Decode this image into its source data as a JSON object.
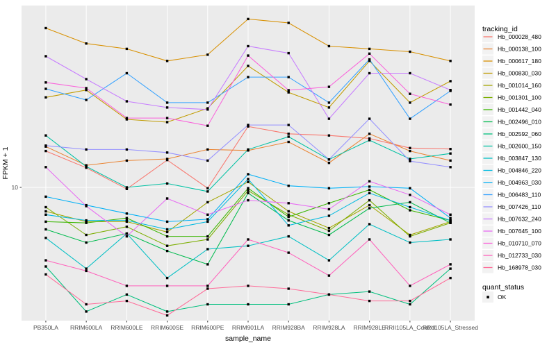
{
  "figure": {
    "y_axis": {
      "title": "FPKM + 1",
      "tick_label": "10",
      "scale": "log10"
    },
    "x_axis": {
      "title": "sample_name"
    },
    "legend": {
      "tracking_title": "tracking_id",
      "quant_title": "quant_status",
      "quant_ok_label": "OK"
    },
    "colors": {
      "panel_background": "#EBEBEB",
      "gridline": "#FFFFFF",
      "legend_key_background": "#F2F2F2",
      "tick_text": "#4D4D4D",
      "point": "#000000"
    }
  },
  "chart_data": {
    "type": "line",
    "title": "",
    "xlabel": "sample_name",
    "ylabel": "FPKM + 1",
    "y_scale": "log10",
    "y_ticks": [
      10
    ],
    "point_shape": "filled-square",
    "quant_status": "OK",
    "x": [
      "PB350LA",
      "RRIM600LA",
      "RRIM600LE",
      "RRIM600SE",
      "RRIM600PE",
      "RRIM901LA",
      "RRIM928BA",
      "RRIM928LA",
      "RRIM928LE",
      "RRII105LA_Control",
      "RRII105LA_Stressed"
    ],
    "series": [
      {
        "name": "Hb_000028_480",
        "color": "#F8766D",
        "values": [
          15.8,
          12.8,
          9.8,
          14.1,
          9.9,
          21.5,
          19.6,
          19.2,
          18.5,
          16.4,
          16.2
        ]
      },
      {
        "name": "Hb_000138_100",
        "color": "#EA8331",
        "values": [
          16.7,
          13.2,
          14.0,
          14.3,
          16.1,
          15.9,
          17.7,
          13.6,
          19.6,
          15.8,
          14.0
        ]
      },
      {
        "name": "Hb_000617_180",
        "color": "#D89000",
        "values": [
          74,
          61,
          57,
          49,
          53,
          83,
          79,
          59,
          57,
          55,
          49
        ]
      },
      {
        "name": "Hb_000830_030",
        "color": "#C09B00",
        "values": [
          31,
          34,
          23.5,
          22.7,
          27,
          46,
          33,
          27.3,
          49,
          29,
          38
        ]
      },
      {
        "name": "Hb_001014_160",
        "color": "#A3A500",
        "values": [
          7.4,
          6.5,
          6.5,
          5.7,
          8.3,
          10.7,
          7.4,
          6.0,
          8.0,
          5.5,
          6.5
        ]
      },
      {
        "name": "Hb_001301_100",
        "color": "#7CAE00",
        "values": [
          7.8,
          5.5,
          6.1,
          4.8,
          5.2,
          9.6,
          7.1,
          5.8,
          8.5,
          5.4,
          6.4
        ]
      },
      {
        "name": "Hb_001442_040",
        "color": "#39B600",
        "values": [
          6.5,
          6.4,
          6.8,
          5.4,
          5.4,
          9.9,
          6.9,
          8.2,
          9.7,
          7.5,
          6.6
        ]
      },
      {
        "name": "Hb_002496_010",
        "color": "#00BB4E",
        "values": [
          5.9,
          5.0,
          5.6,
          4.5,
          3.8,
          9.3,
          6.6,
          5.5,
          7.7,
          8.3,
          6.4
        ]
      },
      {
        "name": "Hb_002592_060",
        "color": "#00BF7D",
        "values": [
          3.7,
          2.1,
          2.6,
          2.1,
          2.3,
          2.3,
          2.3,
          2.6,
          2.7,
          2.3,
          3.6
        ]
      },
      {
        "name": "Hb_002600_150",
        "color": "#00C1A3",
        "values": [
          19.2,
          13,
          10,
          10.5,
          9.5,
          16.1,
          18.9,
          14.2,
          18.1,
          14.3,
          15.3
        ]
      },
      {
        "name": "Hb_003847_130",
        "color": "#00BFC4",
        "values": [
          5.3,
          3.6,
          5.6,
          3.2,
          4.6,
          4.8,
          5.4,
          4.0,
          6.3,
          5.0,
          5.2
        ]
      },
      {
        "name": "Hb_004846_220",
        "color": "#00BAE0",
        "values": [
          7.1,
          6.6,
          6.6,
          5.9,
          6.5,
          11.1,
          6.2,
          7.0,
          9.3,
          7.8,
          6.6
        ]
      },
      {
        "name": "Hb_004963_030",
        "color": "#00B0F6",
        "values": [
          8.9,
          8.0,
          7.2,
          6.5,
          6.7,
          11.8,
          10.2,
          9.9,
          10.1,
          9.9,
          6.8
        ]
      },
      {
        "name": "Hb_006483_110",
        "color": "#35A2FF",
        "values": [
          34.5,
          30,
          42,
          29,
          29,
          40,
          40,
          29,
          50,
          23.7,
          33.6
        ]
      },
      {
        "name": "Hb_007426_110",
        "color": "#9590FF",
        "values": [
          16.9,
          16.1,
          16.1,
          15.5,
          14,
          21.9,
          21.9,
          14.2,
          23.7,
          13.9,
          12.9
        ]
      },
      {
        "name": "Hb_007632_240",
        "color": "#C77CFF",
        "values": [
          52,
          39,
          29.5,
          27.3,
          26.6,
          59,
          54,
          23.7,
          42,
          42,
          34
        ]
      },
      {
        "name": "Hb_007645_100",
        "color": "#E76BF3",
        "values": [
          12.9,
          7.9,
          5.4,
          8.7,
          7.1,
          8.5,
          8.2,
          7.6,
          10.8,
          9.1,
          7.1
        ]
      },
      {
        "name": "Hb_010710_070",
        "color": "#FA62DB",
        "values": [
          37.4,
          34.8,
          23.9,
          23.9,
          21.7,
          52.4,
          33.9,
          35.4,
          53.7,
          32.4,
          28.3
        ]
      },
      {
        "name": "Hb_012733_030",
        "color": "#FF62BC",
        "values": [
          4.0,
          3.5,
          2.9,
          2.9,
          2.9,
          5.2,
          4.4,
          3.3,
          5.2,
          2.9,
          3.8
        ]
      },
      {
        "name": "Hb_168978_030",
        "color": "#FF6A98",
        "values": [
          3.35,
          2.3,
          2.4,
          2.0,
          2.8,
          2.9,
          2.8,
          2.6,
          2.4,
          2.4,
          3.2
        ]
      }
    ]
  }
}
